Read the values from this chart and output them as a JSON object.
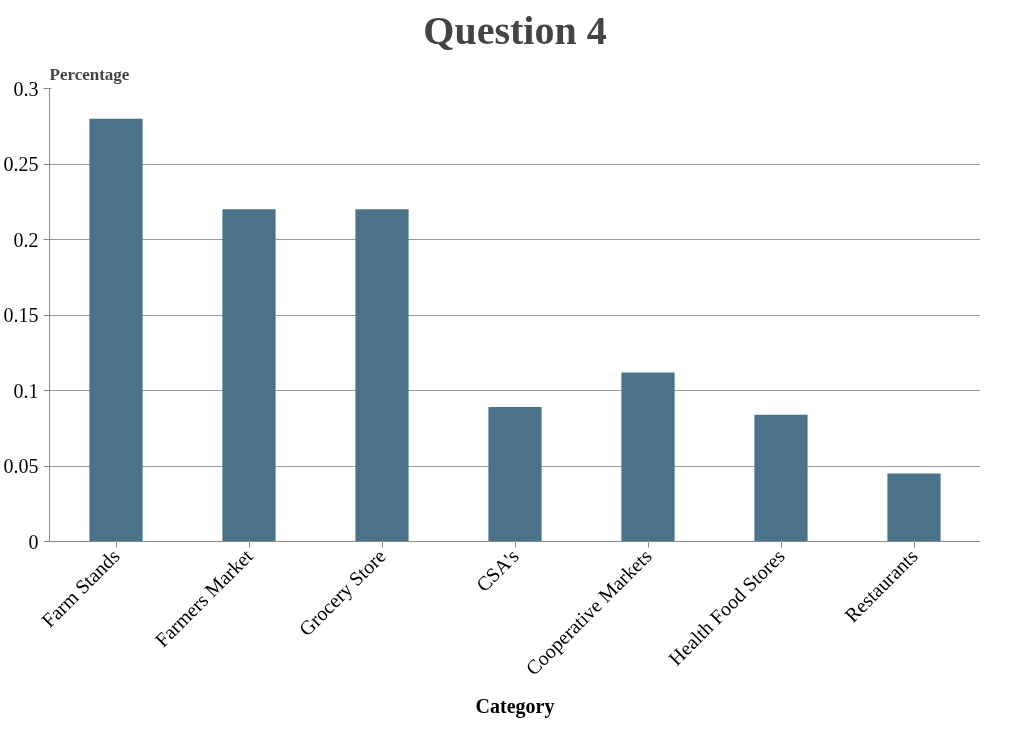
{
  "chart_data": {
    "type": "bar",
    "title": "Question 4",
    "xlabel": "Category",
    "ylabel": "Percentage",
    "categories": [
      "Farm Stands",
      "Farmers Market",
      "Grocery Store",
      "CSA's",
      "Cooperative Markets",
      "Health Food Stores",
      "Restaurants"
    ],
    "values": [
      0.28,
      0.22,
      0.22,
      0.089,
      0.112,
      0.084,
      0.045
    ],
    "color": "#4a7288",
    "ylim": [
      0,
      0.3
    ],
    "yticks": [
      0,
      0.05,
      0.1,
      0.15,
      0.2,
      0.25,
      0.3
    ],
    "grid": "y"
  }
}
